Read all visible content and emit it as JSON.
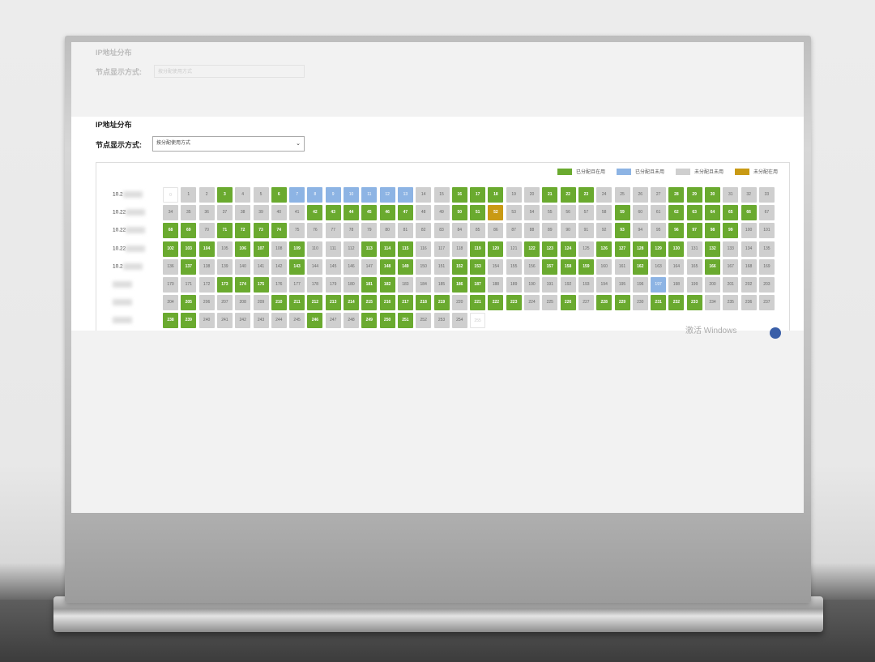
{
  "window": {
    "title": "IP地址分布"
  },
  "display_mode": {
    "label": "节点显示方式:",
    "value": "按分配使用方式"
  },
  "legend": [
    {
      "label": "已分配且在用",
      "color": "#6aaa2f"
    },
    {
      "label": "已分配且未用",
      "color": "#8db4e4"
    },
    {
      "label": "未分配且未用",
      "color": "#cfcfcf"
    },
    {
      "label": "未分配在用",
      "color": "#c99a14"
    }
  ],
  "rows": [
    {
      "label": "10.2",
      "cells": [
        [
          "0",
          "w"
        ],
        [
          "1",
          "x"
        ],
        [
          "2",
          "x"
        ],
        [
          "3",
          "g"
        ],
        [
          "4",
          "x"
        ],
        [
          "5",
          "x"
        ],
        [
          "6",
          "g"
        ],
        [
          "7",
          "b"
        ],
        [
          "8",
          "b"
        ],
        [
          "9",
          "b"
        ],
        [
          "10",
          "b"
        ],
        [
          "11",
          "b"
        ],
        [
          "12",
          "b"
        ],
        [
          "13",
          "b"
        ],
        [
          "14",
          "x"
        ],
        [
          "15",
          "x"
        ],
        [
          "16",
          "g"
        ],
        [
          "17",
          "g"
        ],
        [
          "18",
          "g"
        ],
        [
          "19",
          "x"
        ],
        [
          "20",
          "x"
        ],
        [
          "21",
          "g"
        ],
        [
          "22",
          "g"
        ],
        [
          "23",
          "g"
        ],
        [
          "24",
          "x"
        ],
        [
          "25",
          "x"
        ],
        [
          "26",
          "x"
        ],
        [
          "27",
          "x"
        ],
        [
          "28",
          "g"
        ],
        [
          "29",
          "g"
        ],
        [
          "30",
          "g"
        ],
        [
          "31",
          "x"
        ],
        [
          "32",
          "x"
        ],
        [
          "33",
          "x"
        ]
      ]
    },
    {
      "label": "10.22",
      "cells": [
        [
          "34",
          "x"
        ],
        [
          "35",
          "x"
        ],
        [
          "36",
          "x"
        ],
        [
          "37",
          "x"
        ],
        [
          "38",
          "x"
        ],
        [
          "39",
          "x"
        ],
        [
          "40",
          "x"
        ],
        [
          "41",
          "x"
        ],
        [
          "42",
          "g"
        ],
        [
          "43",
          "g"
        ],
        [
          "44",
          "g"
        ],
        [
          "45",
          "g"
        ],
        [
          "46",
          "g"
        ],
        [
          "47",
          "g"
        ],
        [
          "48",
          "x"
        ],
        [
          "49",
          "x"
        ],
        [
          "50",
          "g"
        ],
        [
          "51",
          "g"
        ],
        [
          "52",
          "o"
        ],
        [
          "53",
          "x"
        ],
        [
          "54",
          "x"
        ],
        [
          "55",
          "x"
        ],
        [
          "56",
          "x"
        ],
        [
          "57",
          "x"
        ],
        [
          "58",
          "x"
        ],
        [
          "59",
          "g"
        ],
        [
          "60",
          "x"
        ],
        [
          "61",
          "x"
        ],
        [
          "62",
          "g"
        ],
        [
          "63",
          "g"
        ],
        [
          "64",
          "g"
        ],
        [
          "65",
          "g"
        ],
        [
          "66",
          "g"
        ],
        [
          "67",
          "x"
        ]
      ]
    },
    {
      "label": "10.22",
      "cells": [
        [
          "68",
          "g"
        ],
        [
          "69",
          "g"
        ],
        [
          "70",
          "x"
        ],
        [
          "71",
          "g"
        ],
        [
          "72",
          "g"
        ],
        [
          "73",
          "g"
        ],
        [
          "74",
          "g"
        ],
        [
          "75",
          "x"
        ],
        [
          "76",
          "x"
        ],
        [
          "77",
          "x"
        ],
        [
          "78",
          "x"
        ],
        [
          "79",
          "x"
        ],
        [
          "80",
          "x"
        ],
        [
          "81",
          "x"
        ],
        [
          "82",
          "x"
        ],
        [
          "83",
          "x"
        ],
        [
          "84",
          "x"
        ],
        [
          "85",
          "x"
        ],
        [
          "86",
          "x"
        ],
        [
          "87",
          "x"
        ],
        [
          "88",
          "x"
        ],
        [
          "89",
          "x"
        ],
        [
          "90",
          "x"
        ],
        [
          "91",
          "x"
        ],
        [
          "92",
          "x"
        ],
        [
          "93",
          "g"
        ],
        [
          "94",
          "x"
        ],
        [
          "95",
          "x"
        ],
        [
          "96",
          "g"
        ],
        [
          "97",
          "g"
        ],
        [
          "98",
          "g"
        ],
        [
          "99",
          "g"
        ],
        [
          "100",
          "x"
        ],
        [
          "101",
          "x"
        ]
      ]
    },
    {
      "label": "10.22",
      "cells": [
        [
          "102",
          "g"
        ],
        [
          "103",
          "g"
        ],
        [
          "104",
          "g"
        ],
        [
          "105",
          "x"
        ],
        [
          "106",
          "g"
        ],
        [
          "107",
          "g"
        ],
        [
          "108",
          "x"
        ],
        [
          "109",
          "g"
        ],
        [
          "110",
          "x"
        ],
        [
          "111",
          "x"
        ],
        [
          "112",
          "x"
        ],
        [
          "113",
          "g"
        ],
        [
          "114",
          "g"
        ],
        [
          "115",
          "g"
        ],
        [
          "116",
          "x"
        ],
        [
          "117",
          "x"
        ],
        [
          "118",
          "x"
        ],
        [
          "119",
          "g"
        ],
        [
          "120",
          "g"
        ],
        [
          "121",
          "x"
        ],
        [
          "122",
          "g"
        ],
        [
          "123",
          "g"
        ],
        [
          "124",
          "g"
        ],
        [
          "125",
          "x"
        ],
        [
          "126",
          "g"
        ],
        [
          "127",
          "g"
        ],
        [
          "128",
          "g"
        ],
        [
          "129",
          "g"
        ],
        [
          "130",
          "g"
        ],
        [
          "131",
          "x"
        ],
        [
          "132",
          "g"
        ],
        [
          "133",
          "x"
        ],
        [
          "134",
          "x"
        ],
        [
          "135",
          "x"
        ]
      ]
    },
    {
      "label": "10.2",
      "cells": [
        [
          "136",
          "x"
        ],
        [
          "137",
          "g"
        ],
        [
          "138",
          "x"
        ],
        [
          "139",
          "x"
        ],
        [
          "140",
          "x"
        ],
        [
          "141",
          "x"
        ],
        [
          "142",
          "x"
        ],
        [
          "143",
          "g"
        ],
        [
          "144",
          "x"
        ],
        [
          "145",
          "x"
        ],
        [
          "146",
          "x"
        ],
        [
          "147",
          "x"
        ],
        [
          "148",
          "g"
        ],
        [
          "149",
          "g"
        ],
        [
          "150",
          "x"
        ],
        [
          "151",
          "x"
        ],
        [
          "152",
          "g"
        ],
        [
          "153",
          "g"
        ],
        [
          "154",
          "x"
        ],
        [
          "155",
          "x"
        ],
        [
          "156",
          "x"
        ],
        [
          "157",
          "g"
        ],
        [
          "158",
          "g"
        ],
        [
          "159",
          "g"
        ],
        [
          "160",
          "x"
        ],
        [
          "161",
          "x"
        ],
        [
          "162",
          "g"
        ],
        [
          "163",
          "x"
        ],
        [
          "164",
          "x"
        ],
        [
          "165",
          "x"
        ],
        [
          "166",
          "g"
        ],
        [
          "167",
          "x"
        ],
        [
          "168",
          "x"
        ],
        [
          "169",
          "x"
        ]
      ]
    },
    {
      "label": "",
      "cells": [
        [
          "170",
          "x"
        ],
        [
          "171",
          "x"
        ],
        [
          "172",
          "x"
        ],
        [
          "173",
          "g"
        ],
        [
          "174",
          "g"
        ],
        [
          "175",
          "g"
        ],
        [
          "176",
          "x"
        ],
        [
          "177",
          "x"
        ],
        [
          "178",
          "x"
        ],
        [
          "179",
          "x"
        ],
        [
          "180",
          "x"
        ],
        [
          "181",
          "g"
        ],
        [
          "182",
          "g"
        ],
        [
          "183",
          "x"
        ],
        [
          "184",
          "x"
        ],
        [
          "185",
          "x"
        ],
        [
          "186",
          "g"
        ],
        [
          "187",
          "g"
        ],
        [
          "188",
          "x"
        ],
        [
          "189",
          "x"
        ],
        [
          "190",
          "x"
        ],
        [
          "191",
          "x"
        ],
        [
          "192",
          "x"
        ],
        [
          "193",
          "x"
        ],
        [
          "194",
          "x"
        ],
        [
          "195",
          "x"
        ],
        [
          "196",
          "x"
        ],
        [
          "197",
          "b"
        ],
        [
          "198",
          "x"
        ],
        [
          "199",
          "x"
        ],
        [
          "200",
          "x"
        ],
        [
          "201",
          "x"
        ],
        [
          "202",
          "x"
        ],
        [
          "203",
          "x"
        ]
      ]
    },
    {
      "label": "",
      "cells": [
        [
          "204",
          "x"
        ],
        [
          "205",
          "g"
        ],
        [
          "206",
          "x"
        ],
        [
          "207",
          "x"
        ],
        [
          "208",
          "x"
        ],
        [
          "209",
          "x"
        ],
        [
          "210",
          "g"
        ],
        [
          "211",
          "g"
        ],
        [
          "212",
          "g"
        ],
        [
          "213",
          "g"
        ],
        [
          "214",
          "g"
        ],
        [
          "215",
          "g"
        ],
        [
          "216",
          "g"
        ],
        [
          "217",
          "g"
        ],
        [
          "218",
          "g"
        ],
        [
          "219",
          "g"
        ],
        [
          "220",
          "x"
        ],
        [
          "221",
          "g"
        ],
        [
          "222",
          "g"
        ],
        [
          "223",
          "g"
        ],
        [
          "224",
          "x"
        ],
        [
          "225",
          "x"
        ],
        [
          "226",
          "g"
        ],
        [
          "227",
          "x"
        ],
        [
          "228",
          "g"
        ],
        [
          "229",
          "g"
        ],
        [
          "230",
          "x"
        ],
        [
          "231",
          "g"
        ],
        [
          "232",
          "g"
        ],
        [
          "233",
          "g"
        ],
        [
          "234",
          "x"
        ],
        [
          "235",
          "x"
        ],
        [
          "236",
          "x"
        ],
        [
          "237",
          "x"
        ]
      ]
    },
    {
      "label": "",
      "cells": [
        [
          "238",
          "g"
        ],
        [
          "239",
          "g"
        ],
        [
          "240",
          "x"
        ],
        [
          "241",
          "x"
        ],
        [
          "242",
          "x"
        ],
        [
          "243",
          "x"
        ],
        [
          "244",
          "x"
        ],
        [
          "245",
          "x"
        ],
        [
          "246",
          "g"
        ],
        [
          "247",
          "x"
        ],
        [
          "248",
          "x"
        ],
        [
          "249",
          "g"
        ],
        [
          "250",
          "g"
        ],
        [
          "251",
          "g"
        ],
        [
          "252",
          "x"
        ],
        [
          "253",
          "x"
        ],
        [
          "254",
          "x"
        ],
        [
          "255",
          "w"
        ]
      ]
    }
  ],
  "watermark": "激活 Windows"
}
